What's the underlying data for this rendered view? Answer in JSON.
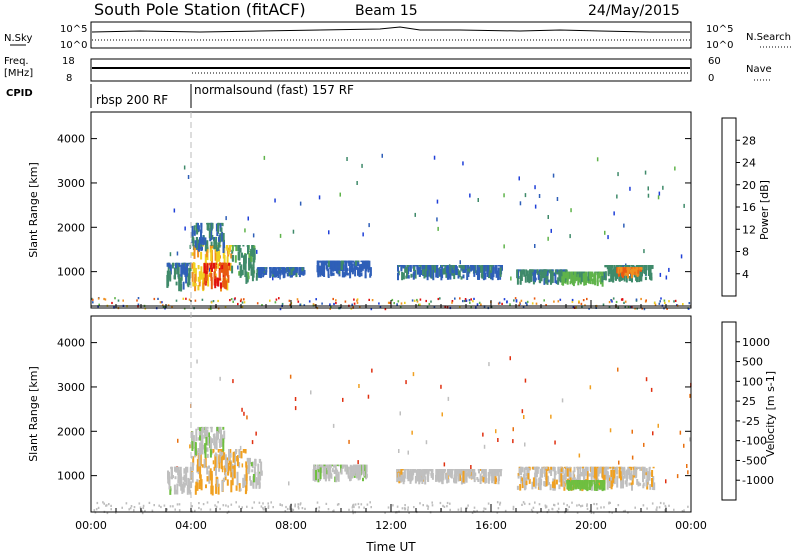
{
  "header": {
    "station": "South Pole Station (fitACF)",
    "beam": "Beam 15",
    "date": "24/May/2015"
  },
  "top_panels": {
    "nsky_label": "N.Sky",
    "nsky_ticks": [
      "10^5",
      "10^0"
    ],
    "nsearch_label": "N.Search",
    "nsearch_ticks": [
      "10^5",
      "10^0"
    ],
    "freq_label": [
      "Freq.",
      "[MHz]"
    ],
    "freq_ticks": [
      "18",
      "8"
    ],
    "nave_label": "Nave",
    "nave_ticks": [
      "60",
      "0"
    ],
    "cpid_label": "CPID",
    "cpid_segments": [
      {
        "label": "rbsp 200 RF",
        "start_hour": 0,
        "end_hour": 4
      },
      {
        "label": "normalsound (fast) 157 RF",
        "start_hour": 4,
        "end_hour": 24
      }
    ]
  },
  "colors": {
    "power_scale": [
      "#1f3fd8",
      "#2f5fb8",
      "#3f8a6a",
      "#5fb34a",
      "#f0d020",
      "#f09020",
      "#e85a10",
      "#e01010"
    ],
    "velocity_scale": [
      "#1f3fd8",
      "#2f6fb0",
      "#3f8a6a",
      "#6fbf40",
      "#bfbfbf",
      "#f0a020",
      "#e87010",
      "#e03010"
    ]
  },
  "chart_data": [
    {
      "type": "heatmap",
      "title": "Power",
      "xlabel": "",
      "ylabel": "Slant Range [km]",
      "xlim": [
        0,
        24
      ],
      "ylim": [
        180,
        4600
      ],
      "x_ticks": [],
      "y_ticks": [
        "1000",
        "2000",
        "3000",
        "4000"
      ],
      "colorbar": {
        "label": "Power [dB]",
        "ticks": [
          "28",
          "24",
          "20",
          "16",
          "12",
          "8",
          "4"
        ],
        "range": [
          0,
          30
        ]
      },
      "patches": [
        {
          "t0": 3.0,
          "t1": 4.0,
          "r0": 550,
          "r1": 1200,
          "value": 8
        },
        {
          "t0": 4.0,
          "t1": 5.6,
          "r0": 550,
          "r1": 1600,
          "value": 18
        },
        {
          "t0": 4.5,
          "t1": 5.5,
          "r0": 600,
          "r1": 1200,
          "value": 26
        },
        {
          "t0": 4.0,
          "t1": 5.3,
          "r0": 1400,
          "r1": 2100,
          "value": 8
        },
        {
          "t0": 5.6,
          "t1": 6.6,
          "r0": 700,
          "r1": 1600,
          "value": 10
        },
        {
          "t0": 6.6,
          "t1": 8.5,
          "r0": 850,
          "r1": 1100,
          "value": 6
        },
        {
          "t0": 9.0,
          "t1": 11.2,
          "r0": 850,
          "r1": 1250,
          "value": 6
        },
        {
          "t0": 12.2,
          "t1": 16.4,
          "r0": 800,
          "r1": 1150,
          "value": 7
        },
        {
          "t0": 17.0,
          "t1": 19.0,
          "r0": 700,
          "r1": 1050,
          "value": 8
        },
        {
          "t0": 18.8,
          "t1": 20.5,
          "r0": 650,
          "r1": 1000,
          "value": 12
        },
        {
          "t0": 20.5,
          "t1": 22.5,
          "r0": 750,
          "r1": 1150,
          "value": 9
        },
        {
          "t0": 21.0,
          "t1": 22.0,
          "r0": 850,
          "r1": 1100,
          "value": 22
        }
      ]
    },
    {
      "type": "heatmap",
      "title": "Velocity",
      "xlabel": "Time UT",
      "ylabel": "Slant Range [km]",
      "xlim": [
        0,
        24
      ],
      "ylim": [
        180,
        4600
      ],
      "x_ticks": [
        "00:00",
        "04:00",
        "08:00",
        "12:00",
        "16:00",
        "20:00",
        "00:00"
      ],
      "y_ticks": [
        "1000",
        "2000",
        "3000",
        "4000"
      ],
      "colorbar": {
        "label": "Velocity [m s-1]",
        "ticks": [
          "1000",
          "500",
          "100",
          "25",
          "-25",
          "-100",
          "-500",
          "-1000"
        ],
        "range": [
          -1000,
          1000
        ]
      },
      "patches": [
        {
          "t0": 3.0,
          "t1": 4.0,
          "r0": 550,
          "r1": 1200,
          "value": -100
        },
        {
          "t0": 4.0,
          "t1": 6.2,
          "r0": 550,
          "r1": 1600,
          "value": -300
        },
        {
          "t0": 4.0,
          "t1": 5.3,
          "r0": 1400,
          "r1": 2100,
          "value": -60
        },
        {
          "t0": 6.2,
          "t1": 6.8,
          "r0": 700,
          "r1": 1400,
          "value": -100
        },
        {
          "t0": 8.8,
          "t1": 11.0,
          "r0": 850,
          "r1": 1250,
          "value": -80
        },
        {
          "t0": 12.2,
          "t1": 16.4,
          "r0": 800,
          "r1": 1150,
          "value": -150
        },
        {
          "t0": 17.0,
          "t1": 22.5,
          "r0": 650,
          "r1": 1200,
          "value": -200
        },
        {
          "t0": 19.0,
          "t1": 20.5,
          "r0": 650,
          "r1": 900,
          "value": 150
        }
      ]
    }
  ]
}
